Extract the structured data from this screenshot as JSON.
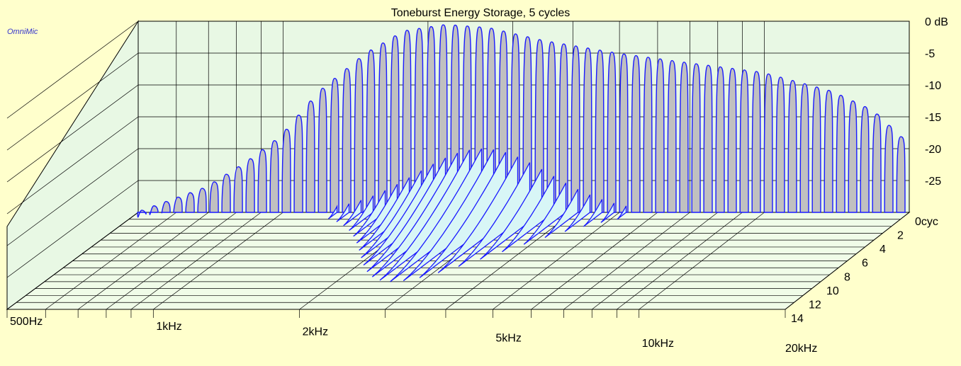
{
  "chart_data": {
    "type": "waterfall-3d",
    "title": "Toneburst Energy Storage, 5 cycles",
    "watermark": "OmniMic",
    "x_axis": {
      "scale": "log",
      "range_hz": [
        500,
        20000
      ],
      "tick_labels": [
        {
          "label": "500Hz",
          "value": 500
        },
        {
          "label": "1kHz",
          "value": 1000
        },
        {
          "label": "2kHz",
          "value": 2000
        },
        {
          "label": "5kHz",
          "value": 5000
        },
        {
          "label": "10kHz",
          "value": 10000
        },
        {
          "label": "20kHz",
          "value": 20000
        }
      ]
    },
    "y_axis": {
      "range_db": [
        -30,
        0
      ],
      "tick_labels": [
        {
          "label": "0 dB",
          "value": 0
        },
        {
          "label": "-5",
          "value": -5
        },
        {
          "label": "-10",
          "value": -10
        },
        {
          "label": "-15",
          "value": -15
        },
        {
          "label": "-20",
          "value": -20
        },
        {
          "label": "-25",
          "value": -25
        }
      ]
    },
    "z_axis": {
      "range_cycles": [
        0,
        14
      ],
      "tick_labels": [
        {
          "label": "0cyc",
          "value": 0
        },
        {
          "label": "2",
          "value": 2
        },
        {
          "label": "4",
          "value": 4
        },
        {
          "label": "6",
          "value": 6
        },
        {
          "label": "8",
          "value": 8
        },
        {
          "label": "10",
          "value": 10
        },
        {
          "label": "12",
          "value": 12
        },
        {
          "label": "14",
          "value": 14
        }
      ]
    },
    "slices": {
      "count": 64,
      "envelope_db": [
        {
          "hz": 500,
          "db": -30
        },
        {
          "hz": 700,
          "db": -26
        },
        {
          "hz": 850,
          "db": -22
        },
        {
          "hz": 1000,
          "db": -18
        },
        {
          "hz": 1200,
          "db": -11
        },
        {
          "hz": 1500,
          "db": -5
        },
        {
          "hz": 1800,
          "db": -1.5
        },
        {
          "hz": 2200,
          "db": -0.5
        },
        {
          "hz": 2700,
          "db": -1
        },
        {
          "hz": 3500,
          "db": -3
        },
        {
          "hz": 5000,
          "db": -5
        },
        {
          "hz": 7000,
          "db": -6.5
        },
        {
          "hz": 10000,
          "db": -8
        },
        {
          "hz": 14000,
          "db": -11
        },
        {
          "hz": 17000,
          "db": -14
        },
        {
          "hz": 20000,
          "db": -19
        }
      ],
      "decay_hump": {
        "center_hz": 2600,
        "peak_db": -20,
        "duration_cycles": 10
      }
    },
    "colors": {
      "background": "#ffffcc",
      "floor_fill": "#f0fce8",
      "wall_fill": "#e8f8e4",
      "grid": "#000000",
      "slice_outline": "#1a1aff",
      "slice_fill": "#d8f6f6",
      "first_slice_fill": "#c0c0c0",
      "watermark": "#3333cc"
    }
  }
}
